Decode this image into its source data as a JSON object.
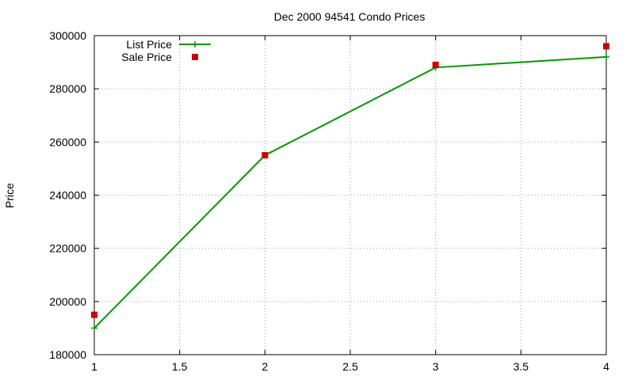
{
  "chart_data": {
    "type": "line",
    "title": "Dec 2000 94541 Condo Prices",
    "xlabel": "",
    "ylabel": "Price",
    "xlim": [
      1,
      4
    ],
    "ylim": [
      180000,
      300000
    ],
    "x_ticks": [
      1,
      1.5,
      2,
      2.5,
      3,
      3.5,
      4
    ],
    "y_ticks": [
      180000,
      200000,
      220000,
      240000,
      260000,
      280000,
      300000
    ],
    "grid": true,
    "legend_position": "top-left",
    "series": [
      {
        "name": "List Price",
        "style": "line-with-plus-markers",
        "color": "#009900",
        "x": [
          1,
          2,
          3,
          4
        ],
        "values": [
          190000,
          255000,
          288000,
          292000
        ]
      },
      {
        "name": "Sale Price",
        "style": "square-markers",
        "color": "#cc0000",
        "x": [
          1,
          2,
          3,
          4
        ],
        "values": [
          195000,
          255000,
          289000,
          296000
        ]
      }
    ]
  }
}
